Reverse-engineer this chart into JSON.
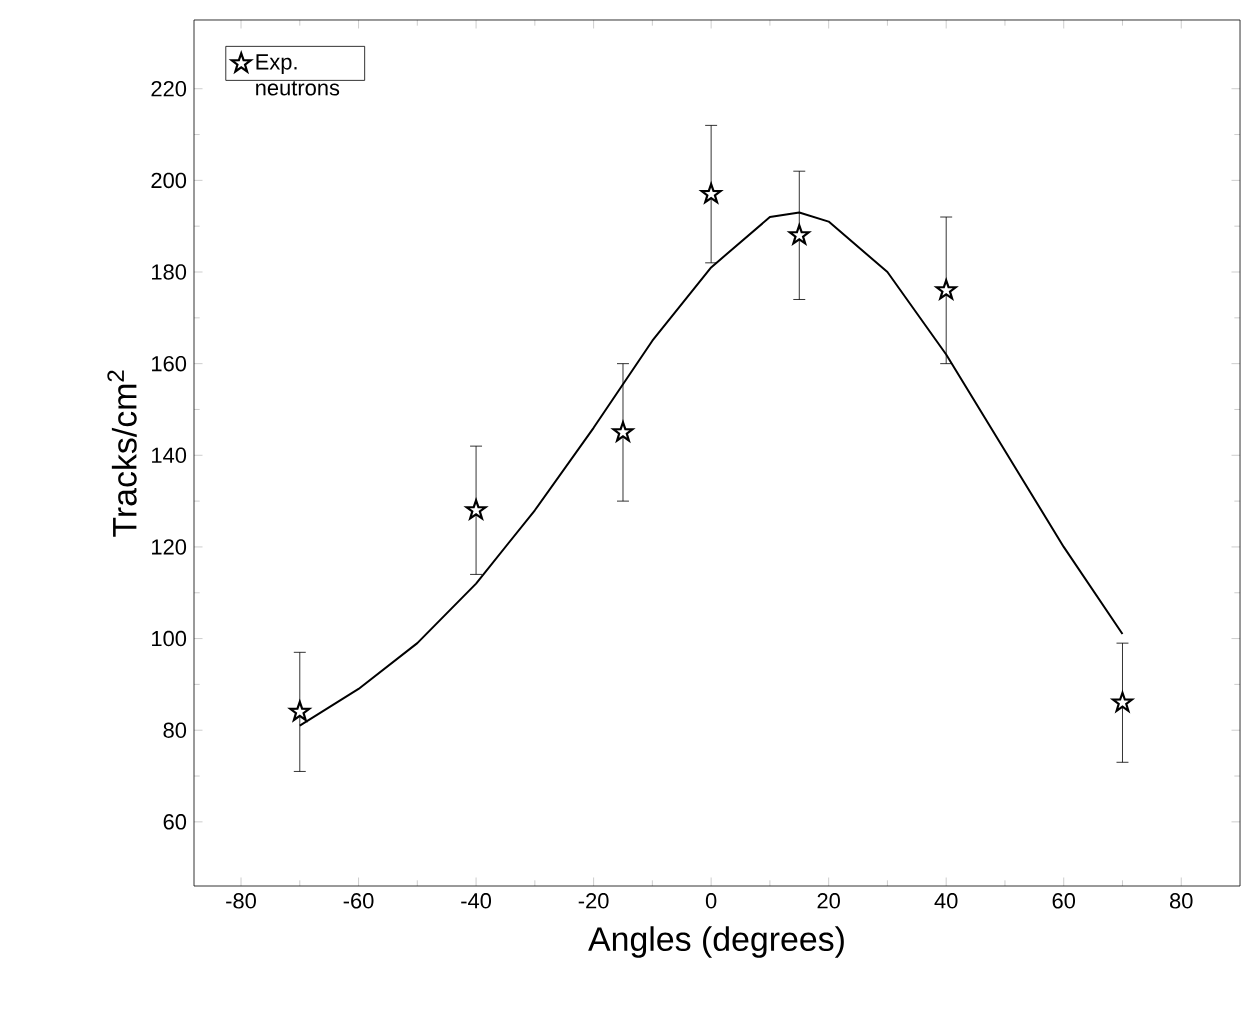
{
  "chart_data": {
    "type": "scatter",
    "xlabel": "Angles  (degrees)",
    "ylabel": "Tracks/cm$^{2}$",
    "xlim": [
      -88,
      90
    ],
    "ylim": [
      46,
      235
    ],
    "xticks": [
      -80,
      -60,
      -40,
      -20,
      0,
      20,
      40,
      60,
      80
    ],
    "yticks": [
      60,
      80,
      100,
      120,
      140,
      160,
      180,
      200,
      220
    ],
    "grid": false,
    "legend": "top left",
    "marker": "star",
    "series": [
      {
        "name": "Exp. neutrons",
        "color": "#000000",
        "x": [
          -70,
          -40,
          -15,
          0,
          15,
          40,
          70
        ],
        "values": [
          84,
          128,
          145,
          197,
          188,
          176,
          86
        ],
        "errors": [
          13,
          14,
          15,
          15,
          14,
          16,
          13
        ]
      },
      {
        "type": "line",
        "color": "#000000",
        "line_style": "solid",
        "marker": "none",
        "x": [
          -70,
          -60,
          -50,
          -40,
          -30,
          -20,
          -10,
          0,
          10,
          15,
          20,
          30,
          40,
          50,
          60,
          70
        ],
        "values": [
          81,
          89,
          99,
          112,
          128,
          146,
          165,
          181,
          192,
          193,
          191,
          180,
          162,
          141,
          120,
          101
        ]
      }
    ]
  }
}
